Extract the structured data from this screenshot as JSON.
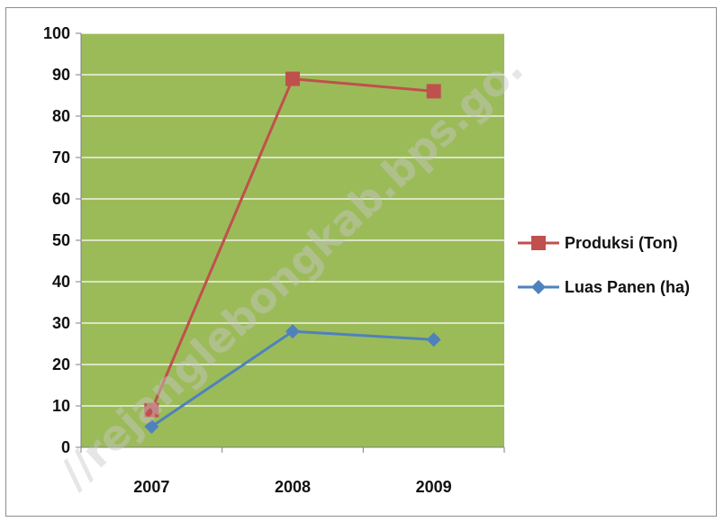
{
  "watermark": "//rejanglebongkab.bps.go.",
  "chart_data": {
    "type": "line",
    "categories": [
      "2007",
      "2008",
      "2009"
    ],
    "series": [
      {
        "name": "Produksi (Ton)",
        "values": [
          9,
          89,
          86
        ],
        "color": "#c0504d",
        "marker": "square"
      },
      {
        "name": "Luas Panen (ha)",
        "values": [
          5,
          28,
          26
        ],
        "color": "#4f81bd",
        "marker": "diamond"
      }
    ],
    "ylim": [
      0,
      100
    ],
    "yticks": [
      "0",
      "10",
      "20",
      "30",
      "40",
      "50",
      "60",
      "70",
      "80",
      "90",
      "100"
    ],
    "plot_background": "#9bbb59",
    "gridlines": true,
    "legend_position": "right"
  }
}
